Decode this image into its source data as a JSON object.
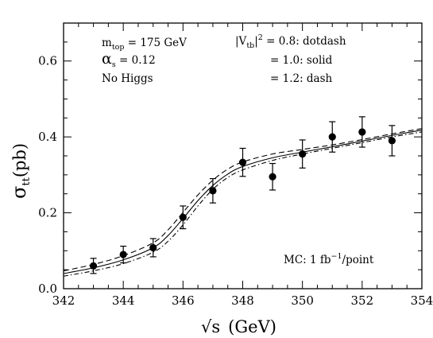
{
  "chart_data": {
    "type": "line",
    "title": "",
    "xlabel": "√s",
    "xlabel_unit": "(GeV)",
    "ylabel": "σ",
    "ylabel_sub": "tt",
    "ylabel_unit": "(pb)",
    "xlim": [
      342,
      354
    ],
    "ylim": [
      0.0,
      0.7
    ],
    "x_ticks": [
      342,
      344,
      346,
      348,
      350,
      352,
      354
    ],
    "x_tick_labels": [
      "342",
      "344",
      "346",
      "348",
      "350",
      "352",
      "354"
    ],
    "y_ticks": [
      0.0,
      0.2,
      0.4,
      0.6
    ],
    "y_tick_labels": [
      "0.0",
      "0.2",
      "0.4",
      "0.6"
    ],
    "grid": false,
    "annotations": {
      "mtop_label": "m",
      "mtop_sub": "top",
      "mtop_value": " = 175 GeV",
      "alpha_label": "α",
      "alpha_sub": "s",
      "alpha_value": " = 0.12",
      "higgs": "No Higgs",
      "vtb_label": "|V",
      "vtb_sub": "tb",
      "vtb_tail": "|",
      "vtb_sup": "2",
      "vtb_value": " = 0.8: dotdash",
      "solid_value": "= 1.0: solid",
      "dash_value": "= 1.2: dash",
      "mc_text": "MC: 1 fb",
      "mc_sup": "−1",
      "mc_tail": "/point"
    },
    "series": [
      {
        "style": "dotdash",
        "x": [
          342,
          343,
          344,
          345,
          345.5,
          346,
          346.5,
          347,
          347.5,
          348,
          349,
          350,
          351,
          352,
          353,
          354
        ],
        "y": [
          0.033,
          0.047,
          0.066,
          0.096,
          0.125,
          0.168,
          0.218,
          0.262,
          0.293,
          0.313,
          0.338,
          0.355,
          0.37,
          0.385,
          0.4,
          0.413
        ]
      },
      {
        "style": "solid",
        "x": [
          342,
          343,
          344,
          345,
          345.5,
          346,
          346.5,
          347,
          347.5,
          348,
          349,
          350,
          351,
          352,
          353,
          354
        ],
        "y": [
          0.04,
          0.055,
          0.076,
          0.108,
          0.14,
          0.185,
          0.232,
          0.272,
          0.302,
          0.322,
          0.345,
          0.36,
          0.374,
          0.389,
          0.404,
          0.418
        ]
      },
      {
        "style": "dash",
        "x": [
          342,
          343,
          344,
          345,
          345.5,
          346,
          346.5,
          347,
          347.5,
          348,
          349,
          350,
          351,
          352,
          353,
          354
        ],
        "y": [
          0.047,
          0.064,
          0.087,
          0.121,
          0.155,
          0.201,
          0.247,
          0.286,
          0.315,
          0.334,
          0.355,
          0.367,
          0.379,
          0.393,
          0.408,
          0.422
        ]
      }
    ],
    "points": {
      "x": [
        343,
        344,
        345,
        346,
        347,
        348,
        349,
        350,
        351,
        352,
        353
      ],
      "y": [
        0.06,
        0.09,
        0.108,
        0.188,
        0.258,
        0.333,
        0.295,
        0.355,
        0.4,
        0.413,
        0.39
      ],
      "err": [
        0.02,
        0.022,
        0.024,
        0.03,
        0.032,
        0.037,
        0.035,
        0.037,
        0.04,
        0.04,
        0.04
      ]
    }
  }
}
